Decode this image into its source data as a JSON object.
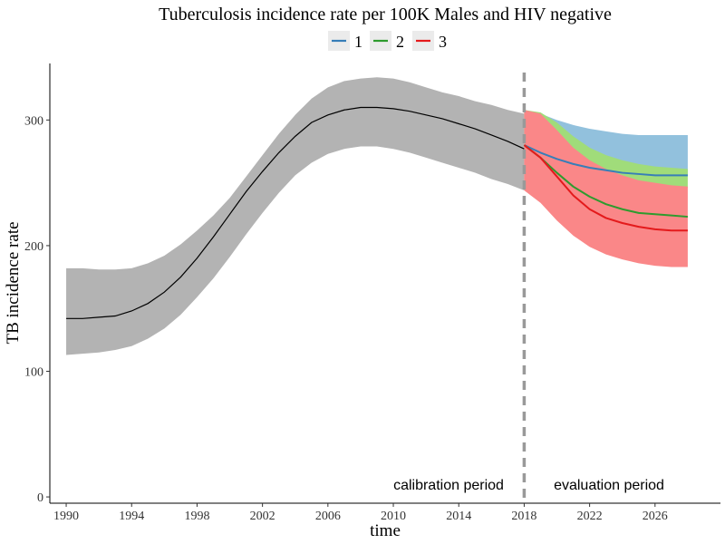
{
  "chart_data": {
    "type": "line",
    "title": "Tuberculosis incidence rate per 100K Males and HIV negative",
    "xlabel": "time",
    "ylabel": "TB incidence rate",
    "xlim": [
      1989,
      2030
    ],
    "ylim": [
      -5,
      345
    ],
    "x_ticks": [
      1990,
      1994,
      1998,
      2002,
      2006,
      2010,
      2014,
      2018,
      2022,
      2026
    ],
    "y_ticks": [
      0,
      100,
      200,
      300
    ],
    "grid": false,
    "legend_position": "top",
    "legend": [
      {
        "name": "1",
        "color": "#377EB8",
        "band_color": "#92C1DD"
      },
      {
        "name": "2",
        "color": "#2E9B2E",
        "band_color": "#A0DC7A"
      },
      {
        "name": "3",
        "color": "#E41A1C",
        "band_color": "#FA8788"
      }
    ],
    "annotations": {
      "cutoff_year": 2018,
      "left_label": "calibration period",
      "right_label": "evaluation period"
    },
    "calibration": {
      "color": "#000000",
      "band_color": "#B3B3B3",
      "x": [
        1990,
        1991,
        1992,
        1993,
        1994,
        1995,
        1996,
        1997,
        1998,
        1999,
        2000,
        2001,
        2002,
        2003,
        2004,
        2005,
        2006,
        2007,
        2008,
        2009,
        2010,
        2011,
        2012,
        2013,
        2014,
        2015,
        2016,
        2017,
        2018
      ],
      "mean": [
        142,
        142,
        143,
        144,
        148,
        154,
        163,
        175,
        190,
        207,
        225,
        243,
        259,
        274,
        287,
        298,
        304,
        308,
        310,
        310,
        309,
        307,
        304,
        301,
        297,
        293,
        288,
        283,
        277
      ],
      "lower": [
        113,
        114,
        115,
        117,
        120,
        126,
        134,
        145,
        159,
        174,
        191,
        209,
        226,
        242,
        256,
        266,
        273,
        277,
        279,
        279,
        277,
        274,
        270,
        266,
        262,
        258,
        253,
        249,
        244
      ],
      "upper": [
        182,
        182,
        181,
        181,
        182,
        186,
        192,
        201,
        212,
        224,
        238,
        255,
        272,
        289,
        304,
        317,
        326,
        331,
        333,
        334,
        333,
        330,
        326,
        322,
        319,
        315,
        312,
        308,
        305
      ]
    },
    "series": [
      {
        "name": "1",
        "x": [
          2018,
          2019,
          2020,
          2021,
          2022,
          2023,
          2024,
          2025,
          2026,
          2027,
          2028
        ],
        "mean": [
          280,
          274,
          269,
          265,
          262,
          260,
          258,
          257,
          256,
          256,
          256
        ],
        "lower": [
          280,
          274,
          269,
          265,
          262,
          260,
          258,
          257,
          256,
          256,
          256
        ],
        "upper": [
          308,
          305,
          300,
          296,
          293,
          291,
          289,
          288,
          288,
          288,
          288
        ]
      },
      {
        "name": "2",
        "x": [
          2018,
          2019,
          2020,
          2021,
          2022,
          2023,
          2024,
          2025,
          2026,
          2027,
          2028
        ],
        "mean": [
          280,
          270,
          258,
          247,
          239,
          233,
          229,
          226,
          225,
          224,
          223
        ],
        "lower": [
          280,
          272,
          266,
          260,
          255,
          251,
          249,
          248,
          247,
          246,
          246
        ],
        "upper": [
          308,
          306,
          298,
          287,
          278,
          272,
          268,
          265,
          263,
          262,
          261
        ]
      },
      {
        "name": "3",
        "x": [
          2018,
          2019,
          2020,
          2021,
          2022,
          2023,
          2024,
          2025,
          2026,
          2027,
          2028
        ],
        "mean": [
          280,
          270,
          255,
          240,
          229,
          222,
          218,
          215,
          213,
          212,
          212
        ],
        "lower": [
          244,
          234,
          220,
          208,
          199,
          193,
          189,
          186,
          184,
          183,
          183
        ],
        "upper": [
          308,
          305,
          292,
          278,
          268,
          261,
          256,
          252,
          250,
          248,
          247
        ]
      }
    ]
  }
}
